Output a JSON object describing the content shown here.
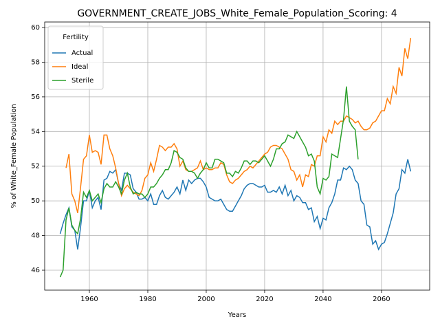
{
  "chart_data": {
    "type": "line",
    "title": "GOVERNMENT_CREATE_JOBS_White_Female_Population_Scoring: 4",
    "xlabel": "Years",
    "ylabel": "% of White_Female Population",
    "legend_title": "Fertility",
    "legend": "upper left",
    "grid": true,
    "xlim": [
      1944.7,
      2076.5
    ],
    "xticks": [
      1960,
      1980,
      2000,
      2020,
      2040,
      2060
    ],
    "ylim": [
      44.85,
      60.32
    ],
    "yticks": [
      46,
      48,
      50,
      52,
      54,
      56,
      58,
      60
    ],
    "x": [
      1950,
      1951,
      1952,
      1953,
      1954,
      1955,
      1956,
      1957,
      1958,
      1959,
      1960,
      1961,
      1962,
      1963,
      1964,
      1965,
      1966,
      1967,
      1968,
      1969,
      1970,
      1971,
      1972,
      1973,
      1974,
      1975,
      1976,
      1977,
      1978,
      1979,
      1980,
      1981,
      1982,
      1983,
      1984,
      1985,
      1986,
      1987,
      1988,
      1989,
      1990,
      1991,
      1992,
      1993,
      1994,
      1995,
      1996,
      1997,
      1998,
      1999,
      2000,
      2001,
      2002,
      2003,
      2004,
      2005,
      2006,
      2007,
      2008,
      2009,
      2010,
      2011,
      2012,
      2013,
      2014,
      2015,
      2016,
      2017,
      2018,
      2019,
      2020,
      2021,
      2022,
      2023,
      2024,
      2025,
      2026,
      2027,
      2028,
      2029,
      2030,
      2031,
      2032,
      2033,
      2034,
      2035,
      2036,
      2037,
      2038,
      2039,
      2040,
      2041,
      2042,
      2043,
      2044,
      2045,
      2046,
      2047,
      2048,
      2049,
      2050,
      2051,
      2052,
      2053,
      2054,
      2055,
      2056,
      2057,
      2058,
      2059,
      2060,
      2061,
      2062,
      2063,
      2064,
      2065,
      2066,
      2067,
      2068,
      2069,
      2070
    ],
    "series": [
      {
        "name": "Actual",
        "color": "#1f77b4",
        "values": [
          48.1,
          48.7,
          49.2,
          49.6,
          48.5,
          48.3,
          47.2,
          48.5,
          50.0,
          50.0,
          50.6,
          49.6,
          50.0,
          50.2,
          49.5,
          51.2,
          51.3,
          51.7,
          51.6,
          51.8,
          51.0,
          50.6,
          51.6,
          51.6,
          51.5,
          50.7,
          50.5,
          50.1,
          50.1,
          50.2,
          50.0,
          50.4,
          49.8,
          49.8,
          50.3,
          50.6,
          50.2,
          50.1,
          50.3,
          50.5,
          50.8,
          50.4,
          51.2,
          50.6,
          51.2,
          51.0,
          51.2,
          51.3,
          51.3,
          51.1,
          50.8,
          50.2,
          50.1,
          50.0,
          50.0,
          50.1,
          49.8,
          49.5,
          49.4,
          49.4,
          49.7,
          50.0,
          50.3,
          50.7,
          50.9,
          51.0,
          51.0,
          50.9,
          50.8,
          50.8,
          50.9,
          50.5,
          50.5,
          50.6,
          50.5,
          50.8,
          50.4,
          50.9,
          50.3,
          50.6,
          50.0,
          50.3,
          50.2,
          49.9,
          49.9,
          49.5,
          49.6,
          48.8,
          49.1,
          48.4,
          49.0,
          48.9,
          49.6,
          49.9,
          50.4,
          51.2,
          51.2,
          51.9,
          51.8,
          52.0,
          51.8,
          51.2,
          51.0,
          50.0,
          49.8,
          48.6,
          48.5,
          47.5,
          47.7,
          47.2,
          47.5,
          47.6,
          48.1,
          48.7,
          49.3,
          50.4,
          50.7,
          51.8,
          51.6,
          52.4,
          51.7
        ]
      },
      {
        "name": "Ideal",
        "color": "#ff7f0e",
        "values": [
          null,
          null,
          51.9,
          52.7,
          50.4,
          50.0,
          49.3,
          50.8,
          52.4,
          52.6,
          53.8,
          52.8,
          52.9,
          52.8,
          52.1,
          53.8,
          53.8,
          53.0,
          52.6,
          51.9,
          51.0,
          50.3,
          50.7,
          50.9,
          50.7,
          50.5,
          50.4,
          50.3,
          50.6,
          51.3,
          51.5,
          52.2,
          51.7,
          52.4,
          53.2,
          53.1,
          52.9,
          53.1,
          53.1,
          53.3,
          53.0,
          52.0,
          52.3,
          51.8,
          51.7,
          51.7,
          51.8,
          51.9,
          52.3,
          51.8,
          51.9,
          51.8,
          51.8,
          51.9,
          51.9,
          52.2,
          52.1,
          51.5,
          51.1,
          51.0,
          51.2,
          51.3,
          51.5,
          51.7,
          51.8,
          52.0,
          51.9,
          52.1,
          52.3,
          52.5,
          52.7,
          52.8,
          53.1,
          53.2,
          53.2,
          53.1,
          53.0,
          52.7,
          52.4,
          51.8,
          51.7,
          51.2,
          51.5,
          50.8,
          51.5,
          51.4,
          52.1,
          52.0,
          52.6,
          52.6,
          53.7,
          53.4,
          54.1,
          53.9,
          54.6,
          54.4,
          54.6,
          54.6,
          54.9,
          54.8,
          54.7,
          54.5,
          54.6,
          54.3,
          54.1,
          54.1,
          54.2,
          54.5,
          54.6,
          54.9,
          55.2,
          55.2,
          55.9,
          55.6,
          56.6,
          56.2,
          57.7,
          57.2,
          58.8,
          58.2,
          59.4
        ]
      },
      {
        "name": "Sterile",
        "color": "#2ca02c",
        "values": [
          45.6,
          46.0,
          48.9,
          49.6,
          48.6,
          48.3,
          48.1,
          49.0,
          50.5,
          50.2,
          50.6,
          50.0,
          50.2,
          50.4,
          49.9,
          50.7,
          51.0,
          50.8,
          50.8,
          51.1,
          50.8,
          50.4,
          51.2,
          51.6,
          50.8,
          50.4,
          50.5,
          50.4,
          50.4,
          50.2,
          50.4,
          50.8,
          50.8,
          51.0,
          51.3,
          51.5,
          51.8,
          51.8,
          52.2,
          52.9,
          52.8,
          52.5,
          52.4,
          51.9,
          51.7,
          51.7,
          51.6,
          51.3,
          51.6,
          51.8,
          52.2,
          51.9,
          51.9,
          52.4,
          52.4,
          52.3,
          52.2,
          51.6,
          51.6,
          51.4,
          51.7,
          51.6,
          51.9,
          52.3,
          52.3,
          52.1,
          52.3,
          52.3,
          52.2,
          52.4,
          52.6,
          52.3,
          52.0,
          52.4,
          53.0,
          53.0,
          53.3,
          53.4,
          53.8,
          53.7,
          53.6,
          54.0,
          53.7,
          53.4,
          53.1,
          52.6,
          52.7,
          52.3,
          50.8,
          50.4,
          51.3,
          51.2,
          51.4,
          52.7,
          52.6,
          52.5,
          53.6,
          54.7,
          56.6,
          54.6,
          54.3,
          54.1,
          52.4,
          null,
          null,
          null,
          null,
          null,
          null,
          null,
          null,
          null,
          null,
          null,
          null,
          null,
          null,
          null,
          null,
          null,
          null
        ]
      }
    ]
  }
}
